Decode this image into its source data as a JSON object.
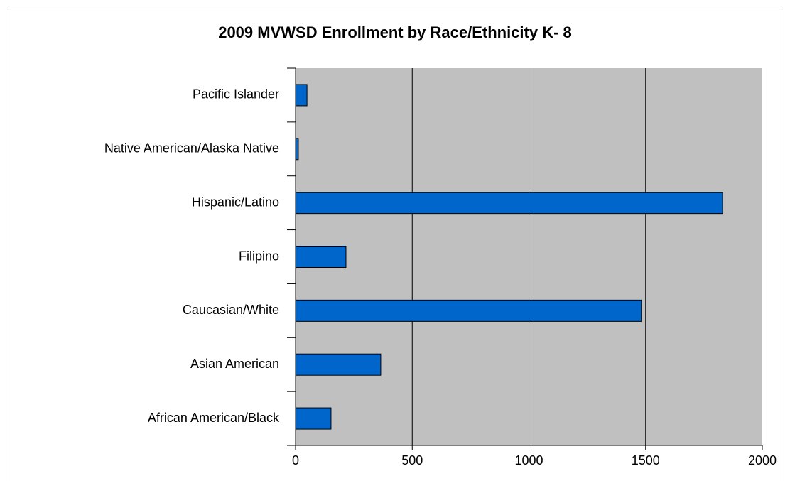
{
  "chart_data": {
    "type": "bar",
    "orientation": "horizontal",
    "title": "2009 MVWSD Enrollment by Race/Ethnicity K- 8",
    "categories": [
      "African American/Black",
      "Asian American",
      "Caucasian/White",
      "Filipino",
      "Hispanic/Latino",
      "Native American/Alaska Native",
      "Pacific Islander"
    ],
    "values": [
      152,
      365,
      1482,
      216,
      1830,
      12,
      49
    ],
    "color": "#0066cc",
    "xlim": [
      0,
      2000
    ],
    "xticks": [
      0,
      500,
      1000,
      1500,
      2000
    ],
    "grid": true
  }
}
